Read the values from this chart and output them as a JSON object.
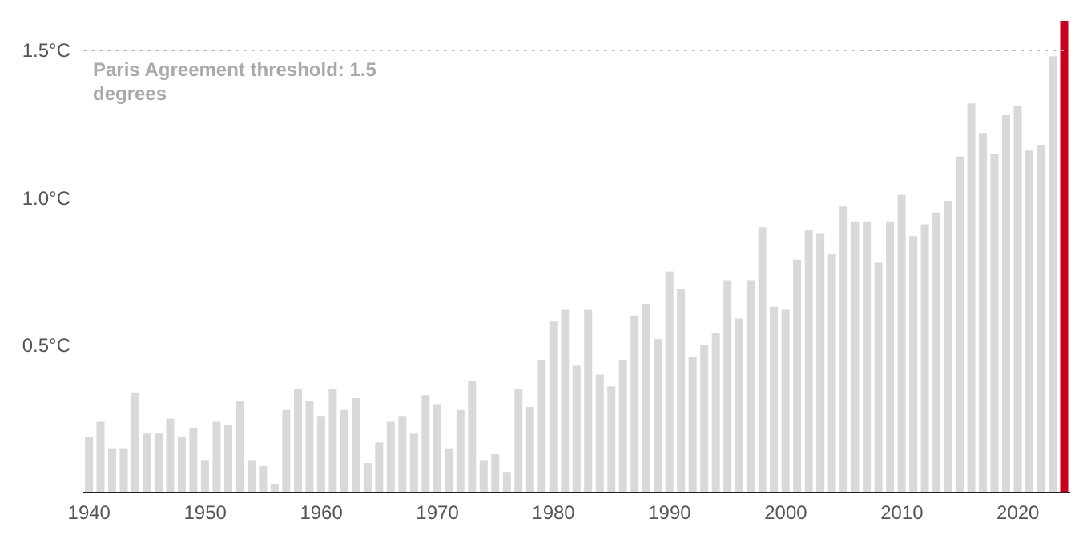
{
  "chart_data": {
    "type": "bar",
    "x": [
      1940,
      1941,
      1942,
      1943,
      1944,
      1945,
      1946,
      1947,
      1948,
      1949,
      1950,
      1951,
      1952,
      1953,
      1954,
      1955,
      1956,
      1957,
      1958,
      1959,
      1960,
      1961,
      1962,
      1963,
      1964,
      1965,
      1966,
      1967,
      1968,
      1969,
      1970,
      1971,
      1972,
      1973,
      1974,
      1975,
      1976,
      1977,
      1978,
      1979,
      1980,
      1981,
      1982,
      1983,
      1984,
      1985,
      1986,
      1987,
      1988,
      1989,
      1990,
      1991,
      1992,
      1993,
      1994,
      1995,
      1996,
      1997,
      1998,
      1999,
      2000,
      2001,
      2002,
      2003,
      2004,
      2005,
      2006,
      2007,
      2008,
      2009,
      2010,
      2011,
      2012,
      2013,
      2014,
      2015,
      2016,
      2017,
      2018,
      2019,
      2020,
      2021,
      2022,
      2023,
      2024
    ],
    "values": [
      0.19,
      0.24,
      0.15,
      0.15,
      0.34,
      0.2,
      0.2,
      0.25,
      0.19,
      0.22,
      0.11,
      0.24,
      0.23,
      0.31,
      0.11,
      0.09,
      0.03,
      0.28,
      0.35,
      0.31,
      0.26,
      0.35,
      0.28,
      0.32,
      0.1,
      0.17,
      0.24,
      0.26,
      0.2,
      0.33,
      0.3,
      0.15,
      0.28,
      0.38,
      0.11,
      0.13,
      0.07,
      0.35,
      0.29,
      0.45,
      0.58,
      0.62,
      0.43,
      0.62,
      0.4,
      0.36,
      0.45,
      0.6,
      0.64,
      0.52,
      0.75,
      0.69,
      0.46,
      0.5,
      0.54,
      0.72,
      0.59,
      0.72,
      0.9,
      0.63,
      0.62,
      0.79,
      0.89,
      0.88,
      0.81,
      0.97,
      0.92,
      0.92,
      0.78,
      0.92,
      1.01,
      0.87,
      0.91,
      0.95,
      0.99,
      1.14,
      1.32,
      1.22,
      1.15,
      1.28,
      1.31,
      1.16,
      1.18,
      1.48,
      1.6
    ],
    "colors": [
      "#d9d9d9",
      "#d9d9d9",
      "#d9d9d9",
      "#d9d9d9",
      "#d9d9d9",
      "#d9d9d9",
      "#d9d9d9",
      "#d9d9d9",
      "#d9d9d9",
      "#d9d9d9",
      "#d9d9d9",
      "#d9d9d9",
      "#d9d9d9",
      "#d9d9d9",
      "#d9d9d9",
      "#d9d9d9",
      "#d9d9d9",
      "#d9d9d9",
      "#d9d9d9",
      "#d9d9d9",
      "#d9d9d9",
      "#d9d9d9",
      "#d9d9d9",
      "#d9d9d9",
      "#d9d9d9",
      "#d9d9d9",
      "#d9d9d9",
      "#d9d9d9",
      "#d9d9d9",
      "#d9d9d9",
      "#d9d9d9",
      "#d9d9d9",
      "#d9d9d9",
      "#d9d9d9",
      "#d9d9d9",
      "#d9d9d9",
      "#d9d9d9",
      "#d9d9d9",
      "#d9d9d9",
      "#d9d9d9",
      "#d9d9d9",
      "#d9d9d9",
      "#d9d9d9",
      "#d9d9d9",
      "#d9d9d9",
      "#d9d9d9",
      "#d9d9d9",
      "#d9d9d9",
      "#d9d9d9",
      "#d9d9d9",
      "#d9d9d9",
      "#d9d9d9",
      "#d9d9d9",
      "#d9d9d9",
      "#d9d9d9",
      "#d9d9d9",
      "#d9d9d9",
      "#d9d9d9",
      "#d9d9d9",
      "#d9d9d9",
      "#d9d9d9",
      "#d9d9d9",
      "#d9d9d9",
      "#d9d9d9",
      "#d9d9d9",
      "#d9d9d9",
      "#d9d9d9",
      "#d9d9d9",
      "#d9d9d9",
      "#d9d9d9",
      "#d9d9d9",
      "#d9d9d9",
      "#d9d9d9",
      "#d9d9d9",
      "#d9d9d9",
      "#d9d9d9",
      "#d9d9d9",
      "#d9d9d9",
      "#d9d9d9",
      "#d9d9d9",
      "#d9d9d9",
      "#d9d9d9",
      "#d9d9d9",
      "#d9d9d9",
      "#c8001e"
    ],
    "xlim": [
      1939.5,
      2024.5
    ],
    "xticks": [
      1940,
      1950,
      1960,
      1970,
      1980,
      1990,
      2000,
      2010,
      2020
    ],
    "ylim": [
      0,
      1.6
    ],
    "yticks": [
      {
        "value": 0.5,
        "label": "0.5°C"
      },
      {
        "value": 1.0,
        "label": "1.0°C"
      },
      {
        "value": 1.5,
        "label": "1.5°C"
      }
    ],
    "grid": false,
    "ref_lines": [
      {
        "axis": "y",
        "value": 1.5,
        "label": "Paris Agreement threshold: 1.5 degrees",
        "color": "#bbbbbb",
        "line_style": "dotted"
      }
    ]
  }
}
